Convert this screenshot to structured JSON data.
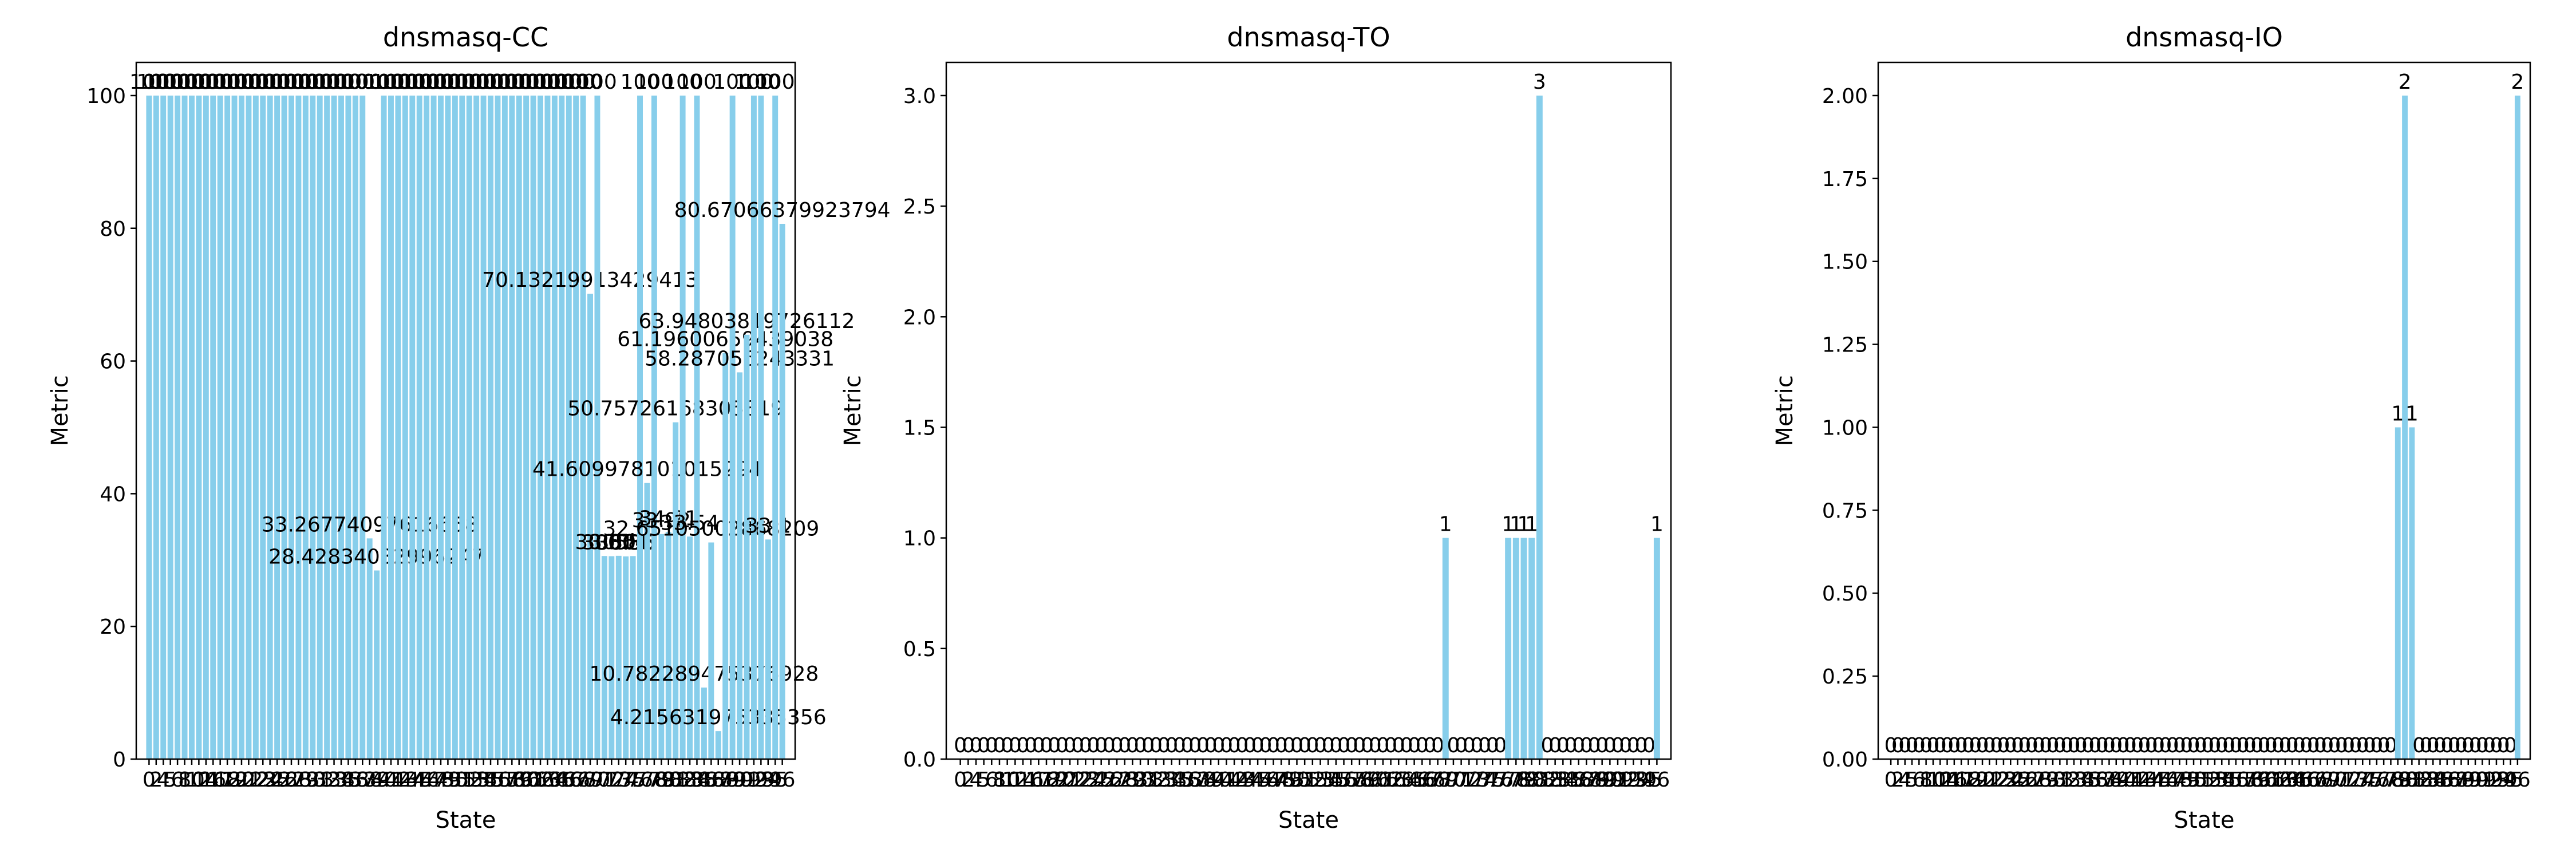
{
  "chart_data": [
    {
      "type": "bar",
      "title": "dnsmasq-CC",
      "xlabel": "State",
      "ylabel": "Metric",
      "color": "#87ceeb",
      "categories": [
        0,
        2,
        4,
        5,
        6,
        8,
        10,
        12,
        14,
        16,
        17,
        18,
        19,
        20,
        21,
        22,
        23,
        24,
        25,
        26,
        27,
        28,
        29,
        30,
        31,
        32,
        33,
        34,
        35,
        36,
        37,
        38,
        39,
        40,
        41,
        42,
        43,
        44,
        45,
        46,
        47,
        48,
        49,
        50,
        51,
        52,
        53,
        54,
        55,
        56,
        57,
        58,
        59,
        60,
        61,
        62,
        63,
        64,
        65,
        66,
        67,
        68,
        69,
        70,
        71,
        72,
        73,
        74,
        75,
        76,
        77,
        78,
        79,
        80,
        81,
        82,
        83,
        84,
        85,
        86,
        87,
        88,
        89,
        90,
        91,
        92,
        93,
        94,
        95,
        96
      ],
      "values": [
        100,
        100,
        100,
        100,
        100,
        100,
        100,
        100,
        100,
        100,
        100,
        100,
        100,
        100,
        100,
        100,
        100,
        100,
        100,
        100,
        100,
        100,
        100,
        100,
        100,
        100,
        100,
        100,
        100,
        100,
        100,
        33.26774097616658,
        28.42834032996247,
        100,
        100,
        100,
        100,
        100,
        100,
        100,
        100,
        100,
        100,
        100,
        100,
        100,
        100,
        100,
        100,
        100,
        100,
        100,
        100,
        100,
        100,
        100,
        100,
        100,
        100,
        100,
        100,
        100,
        70.13219913429413,
        100,
        30.61,
        30.58,
        30.64,
        30.55,
        30.6,
        100,
        41.609978101015294,
        100,
        33.92,
        34.21,
        50.75726168305819,
        100,
        33.54,
        100,
        10.782289475376928,
        32.65105002868209,
        4.215631975335356,
        61.19600659439038,
        100,
        58.287056243331,
        63.94803819726112,
        100,
        100,
        33.1,
        100,
        80.67066379923794
      ],
      "ylim": [
        0,
        105
      ],
      "yticks": [
        0,
        20,
        40,
        60,
        80,
        100
      ]
    },
    {
      "type": "bar",
      "title": "dnsmasq-TO",
      "xlabel": "State",
      "ylabel": "Metric",
      "color": "#87ceeb",
      "categories": [
        0,
        2,
        4,
        5,
        6,
        8,
        10,
        12,
        14,
        16,
        17,
        18,
        19,
        20,
        21,
        22,
        23,
        24,
        25,
        26,
        27,
        28,
        29,
        30,
        31,
        32,
        33,
        34,
        35,
        36,
        37,
        38,
        39,
        40,
        41,
        42,
        43,
        44,
        45,
        46,
        47,
        48,
        49,
        50,
        51,
        52,
        53,
        54,
        55,
        56,
        57,
        58,
        59,
        60,
        61,
        62,
        63,
        64,
        65,
        66,
        67,
        68,
        69,
        70,
        71,
        72,
        73,
        74,
        75,
        76,
        77,
        78,
        79,
        80,
        81,
        82,
        83,
        84,
        85,
        86,
        87,
        88,
        89,
        90,
        91,
        92,
        93,
        94,
        95,
        96
      ],
      "values": [
        0,
        0,
        0,
        0,
        0,
        0,
        0,
        0,
        0,
        0,
        0,
        0,
        0,
        0,
        0,
        0,
        0,
        0,
        0,
        0,
        0,
        0,
        0,
        0,
        0,
        0,
        0,
        0,
        0,
        0,
        0,
        0,
        0,
        0,
        0,
        0,
        0,
        0,
        0,
        0,
        0,
        0,
        0,
        0,
        0,
        0,
        0,
        0,
        0,
        0,
        0,
        0,
        0,
        0,
        0,
        0,
        0,
        0,
        0,
        0,
        0,
        0,
        1,
        0,
        0,
        0,
        0,
        0,
        0,
        0,
        1,
        1,
        1,
        1,
        3,
        0,
        0,
        0,
        0,
        0,
        0,
        0,
        0,
        0,
        0,
        0,
        0,
        0,
        0,
        1
      ],
      "ylim": [
        0,
        3.15
      ],
      "yticks": [
        {
          "value": 0,
          "label": "0.0"
        },
        {
          "value": 0.5,
          "label": "0.5"
        },
        {
          "value": 1,
          "label": "1.0"
        },
        {
          "value": 1.5,
          "label": "1.5"
        },
        {
          "value": 2,
          "label": "2.0"
        },
        {
          "value": 2.5,
          "label": "2.5"
        },
        {
          "value": 3,
          "label": "3.0"
        }
      ]
    },
    {
      "type": "bar",
      "title": "dnsmasq-IO",
      "xlabel": "State",
      "ylabel": "Metric",
      "color": "#87ceeb",
      "categories": [
        0,
        2,
        4,
        5,
        6,
        8,
        10,
        12,
        14,
        16,
        17,
        18,
        19,
        20,
        21,
        22,
        23,
        24,
        25,
        26,
        27,
        28,
        29,
        30,
        31,
        32,
        33,
        34,
        35,
        36,
        37,
        38,
        39,
        40,
        41,
        42,
        43,
        44,
        45,
        46,
        47,
        48,
        49,
        50,
        51,
        52,
        53,
        54,
        55,
        56,
        57,
        58,
        59,
        60,
        61,
        62,
        63,
        64,
        65,
        66,
        67,
        68,
        69,
        70,
        71,
        72,
        73,
        74,
        75,
        76,
        77,
        78,
        79,
        80,
        81,
        82,
        83,
        84,
        85,
        86,
        87,
        88,
        89,
        90,
        91,
        92,
        93,
        94,
        95,
        96
      ],
      "values": [
        0,
        0,
        0,
        0,
        0,
        0,
        0,
        0,
        0,
        0,
        0,
        0,
        0,
        0,
        0,
        0,
        0,
        0,
        0,
        0,
        0,
        0,
        0,
        0,
        0,
        0,
        0,
        0,
        0,
        0,
        0,
        0,
        0,
        0,
        0,
        0,
        0,
        0,
        0,
        0,
        0,
        0,
        0,
        0,
        0,
        0,
        0,
        0,
        0,
        0,
        0,
        0,
        0,
        0,
        0,
        0,
        0,
        0,
        0,
        0,
        0,
        0,
        0,
        0,
        0,
        0,
        0,
        0,
        0,
        0,
        0,
        0,
        1,
        2,
        1,
        0,
        0,
        0,
        0,
        0,
        0,
        0,
        0,
        0,
        0,
        0,
        0,
        0,
        0,
        2
      ],
      "ylim": [
        0,
        2.1
      ],
      "yticks": [
        {
          "value": 0,
          "label": "0.00"
        },
        {
          "value": 0.25,
          "label": "0.25"
        },
        {
          "value": 0.5,
          "label": "0.50"
        },
        {
          "value": 0.75,
          "label": "0.75"
        },
        {
          "value": 1,
          "label": "1.00"
        },
        {
          "value": 1.25,
          "label": "1.25"
        },
        {
          "value": 1.5,
          "label": "1.50"
        },
        {
          "value": 1.75,
          "label": "1.75"
        },
        {
          "value": 2,
          "label": "2.00"
        }
      ]
    }
  ]
}
